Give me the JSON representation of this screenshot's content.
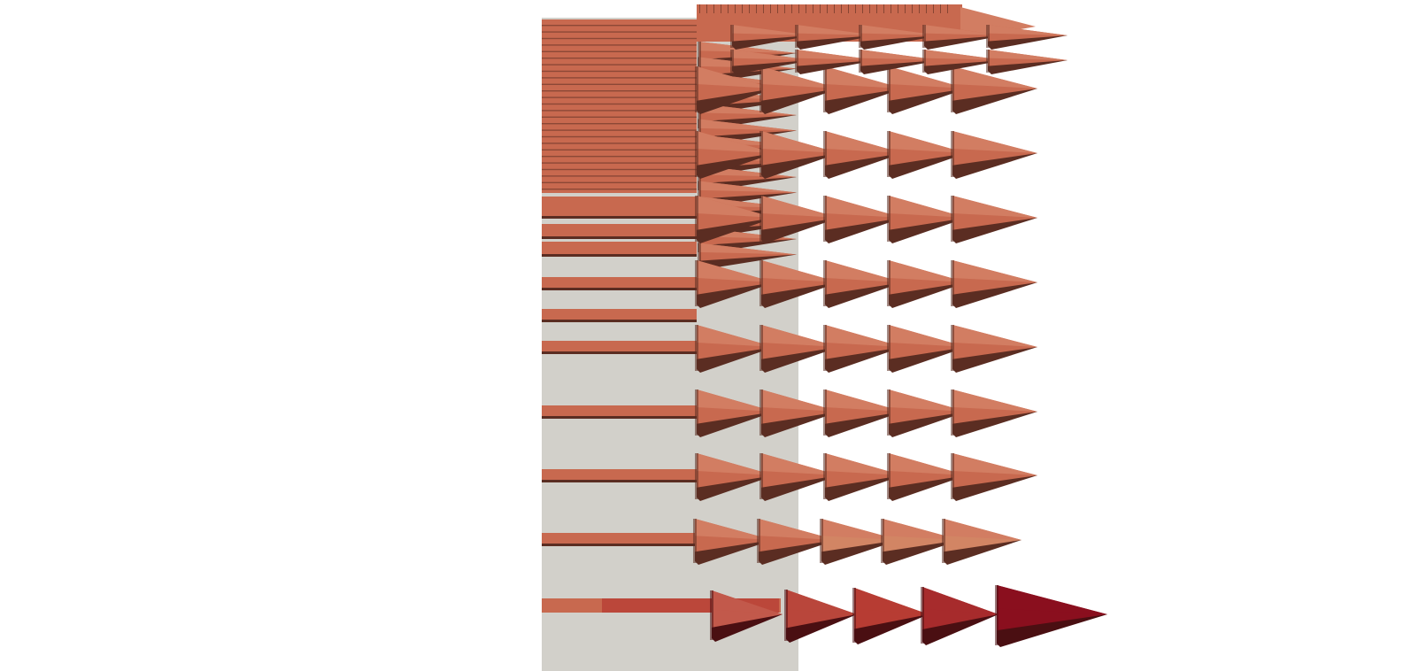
{
  "scene": {
    "description_kind": "3d-glyph-render",
    "background_color": "#ffffff",
    "plane_color": "#d2d0ca",
    "glyph": "arrow-cone",
    "glyph_direction": "right",
    "colors": {
      "arrow_main": "#c8694f",
      "arrow_light": "#d27d62",
      "arrow_shadow": "#5b2d22",
      "arrow_faded": "#d28564",
      "arrow_red": "#b73c33",
      "arrow_red_dark": "#8a0f1e"
    },
    "grid": {
      "columns": 5,
      "rows": 9
    }
  }
}
